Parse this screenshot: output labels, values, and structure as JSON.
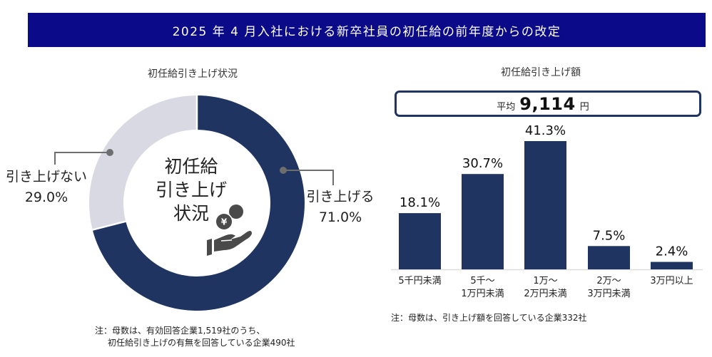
{
  "header": {
    "title": "2025 年 4 月入社における新卒社員の初任給の前年度からの改定"
  },
  "left_chart": {
    "title": "初任給引き上げ状況",
    "center_label": [
      "初任給",
      "引き上げ",
      "状況"
    ],
    "icon": "yen-coin-hand-icon",
    "segments": [
      {
        "label": "引き上げる",
        "value_text": "71.0%",
        "color": "#1f3461"
      },
      {
        "label": "引き上げない",
        "value_text": "29.0%",
        "color": "#d8d9e3"
      }
    ],
    "note": [
      "注：母数は、有効回答企業1,519社のうち、",
      "初任給引き上げの有無を回答している企業490社"
    ]
  },
  "right_chart": {
    "title": "初任給引き上げ額",
    "average": {
      "prefix": "平均",
      "value": "9,114",
      "unit": "円"
    },
    "category_lines": [
      [
        "5千円未満"
      ],
      [
        "5千〜",
        "1万円未満"
      ],
      [
        "1万〜",
        "2万円未満"
      ],
      [
        "2万〜",
        "3万円未満"
      ],
      [
        "3万円以上"
      ]
    ],
    "bar_color": "#1f3461",
    "note": "注：母数は、引き上げ額を回答している企業332社"
  },
  "colors": {
    "header_bg": "#0b0b8a",
    "navy": "#1f3461",
    "light_gray": "#d8d9e3",
    "leader_line": "#6e6e6e",
    "icon": "#4a4a4a"
  },
  "chart_data": [
    {
      "type": "pie",
      "title": "初任給引き上げ状況",
      "center_text": "初任給引き上げ状況",
      "categories": [
        "引き上げる",
        "引き上げない"
      ],
      "values": [
        71.0,
        29.0
      ],
      "unit": "%",
      "legend_position": "leader-line labels",
      "note": "注：母数は、有効回答企業1,519社のうち、初任給引き上げの有無を回答している企業490社"
    },
    {
      "type": "bar",
      "title": "初任給引き上げ額",
      "categories": [
        "5千円未満",
        "5千〜1万円未満",
        "1万〜2万円未満",
        "2万〜3万円未満",
        "3万円以上"
      ],
      "values": [
        18.1,
        30.7,
        41.3,
        7.5,
        2.4
      ],
      "unit": "%",
      "annotation": "平均 9,114 円",
      "xlabel": "",
      "ylabel": "",
      "ylim": [
        0,
        45
      ],
      "grid": false,
      "note": "注：母数は、引き上げ額を回答している企業332社"
    }
  ]
}
